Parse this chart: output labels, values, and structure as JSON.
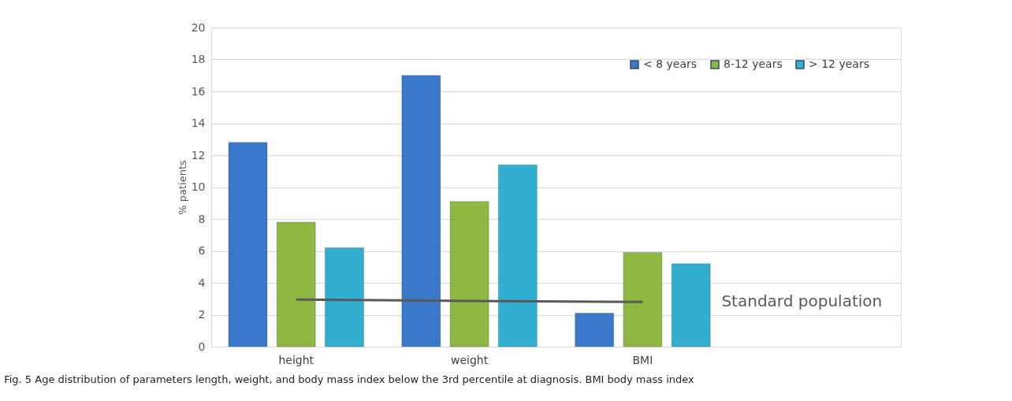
{
  "chart_data": {
    "type": "bar",
    "ylabel": "% patients",
    "categories": [
      "height",
      "weight",
      "BMI",
      null
    ],
    "series": [
      {
        "name": "< 8 years",
        "color": "#3a78c9",
        "values": [
          12.8,
          17.0,
          2.1,
          null
        ]
      },
      {
        "name": "8-12 years",
        "color": "#8fb843",
        "values": [
          7.8,
          9.1,
          5.9,
          null
        ]
      },
      {
        "name": "> 12 years",
        "color": "#31aed0",
        "values": [
          6.2,
          11.4,
          5.2,
          null
        ]
      },
      {
        "name": "Standard population",
        "type": "line",
        "color": "#595959",
        "values": [
          2.95,
          2.87,
          2.8,
          null
        ],
        "marker": "none",
        "line_style": "solid"
      }
    ],
    "ylim": [
      0,
      20
    ],
    "yticks": [
      0,
      2,
      4,
      6,
      8,
      10,
      12,
      14,
      16,
      18,
      20
    ],
    "grid": "y",
    "legend": "top right",
    "annotations": [
      "Fig. 5  Age distribution of parameters length, weight, and body mass index below the 3rd percentile at diagnosis. BMI body mass index"
    ]
  }
}
